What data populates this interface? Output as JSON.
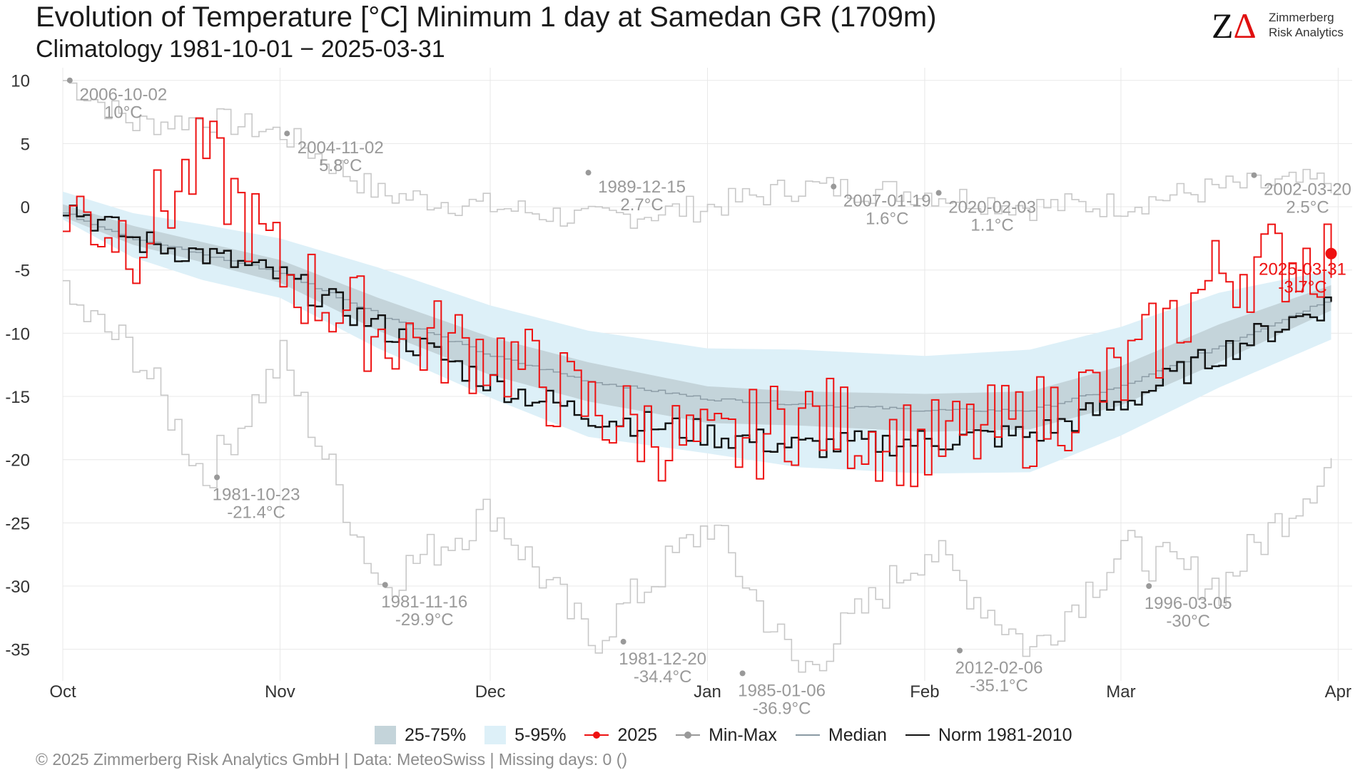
{
  "header": {
    "title": "Evolution of Temperature [°C] Minimum 1 day at Samedan  GR (1709m)",
    "subtitle": "Climatology 1981-10-01 − 2025-03-31"
  },
  "logo": {
    "mark_z": "Z",
    "mark_a": "Δ",
    "line1": "Zimmerberg",
    "line2": "Risk Analytics"
  },
  "footer": {
    "text": "©  2025 Zimmerberg Risk Analytics GmbH | Data: MeteoSwiss | Missing days: 0 ()"
  },
  "colors": {
    "band_25_75": "#c4d4da",
    "band_5_95": "#ddf0f8",
    "year_2025": "#ee1111",
    "minmax": "#c8c8c8",
    "minmax_dot": "#999999",
    "median": "#8a9aa4",
    "norm": "#111111",
    "annotation": "#999999",
    "grid": "#e8e8e8"
  },
  "chart_data": {
    "type": "line",
    "title": "Evolution of Temperature [°C] Minimum 1 day at Samedan  GR (1709m)",
    "x_axis": {
      "ticks": [
        {
          "label": "Oct",
          "day": 0
        },
        {
          "label": "Nov",
          "day": 31
        },
        {
          "label": "Dec",
          "day": 61
        },
        {
          "label": "Jan",
          "day": 92
        },
        {
          "label": "Feb",
          "day": 123
        },
        {
          "label": "Mar",
          "day": 151
        },
        {
          "label": "Apr",
          "day": 182
        }
      ],
      "range": [
        "2024-10-01",
        "2025-04-01"
      ]
    },
    "y_axis": {
      "ticks": [
        10,
        5,
        0,
        -5,
        -10,
        -15,
        -20,
        -25,
        -30,
        -35
      ],
      "range": [
        -37.5,
        11
      ],
      "unit": "°C"
    },
    "grid": true,
    "legend": {
      "placement": "bottom",
      "items": [
        {
          "key": "band_25_75",
          "label": "25-75%",
          "kind": "swatch"
        },
        {
          "key": "band_5_95",
          "label": "5-95%",
          "kind": "swatch"
        },
        {
          "key": "year_2025",
          "label": "2025",
          "kind": "dotline"
        },
        {
          "key": "minmax_dot",
          "label": "Min-Max",
          "kind": "dotline"
        },
        {
          "key": "median",
          "label": "Median",
          "kind": "line"
        },
        {
          "key": "norm",
          "label": "Norm 1981-2010",
          "kind": "line"
        }
      ]
    },
    "anchors": {
      "days": [
        0,
        10,
        20,
        31,
        45,
        61,
        75,
        92,
        105,
        123,
        138,
        151,
        165,
        181
      ],
      "median": [
        -0.5,
        -2.5,
        -3.8,
        -5.2,
        -8.5,
        -11.8,
        -13.8,
        -15.2,
        -15.6,
        -16.1,
        -16.1,
        -14.2,
        -11.0,
        -7.2
      ],
      "p25": [
        -0.8,
        -3.0,
        -4.4,
        -6.0,
        -9.8,
        -13.3,
        -15.4,
        -17.1,
        -17.3,
        -17.8,
        -17.6,
        -15.7,
        -12.3,
        -8.2
      ],
      "p75": [
        0.2,
        -1.5,
        -2.8,
        -4.2,
        -7.2,
        -10.3,
        -12.3,
        -14.2,
        -14.6,
        -14.8,
        -14.6,
        -12.6,
        -9.3,
        -6.2
      ],
      "p5": [
        -1.0,
        -4.0,
        -5.8,
        -7.2,
        -11.2,
        -15.1,
        -18.2,
        -19.5,
        -20.6,
        -21.1,
        -21.0,
        -18.1,
        -14.3,
        -10.5
      ],
      "p95": [
        1.2,
        -0.5,
        -1.4,
        -2.5,
        -4.8,
        -7.8,
        -9.8,
        -11.2,
        -11.3,
        -11.8,
        -11.3,
        -9.5,
        -6.8,
        -5.0
      ],
      "max": [
        10.0,
        6.5,
        7.0,
        5.8,
        1.0,
        0.0,
        -1.0,
        0.0,
        1.6,
        1.1,
        0.0,
        0.2,
        1.5,
        2.0
      ],
      "min": [
        -7.5,
        -11.5,
        -21.4,
        -12.0,
        -29.9,
        -24.0,
        -34.4,
        -25.0,
        -36.9,
        -27.0,
        -35.1,
        -27.0,
        -30.0,
        -20.0
      ],
      "norm": [
        0.2,
        -2.7,
        -3.8,
        -5.6,
        -9.5,
        -14.0,
        -16.5,
        -18.0,
        -19.0,
        -18.5,
        -18.0,
        -15.5,
        -11.5,
        -7.5
      ],
      "year_2025": [
        0.0,
        -2.5,
        4.0,
        -5.2,
        -10.0,
        -11.5,
        -16.0,
        -19.5,
        -16.5,
        -19.0,
        -17.0,
        -13.5,
        -5.0,
        -3.7
      ]
    },
    "record_annotations": [
      {
        "date": "2006-10-02",
        "value": "10°C",
        "day": 1,
        "temp": 10.0,
        "side": "right"
      },
      {
        "date": "2004-11-02",
        "value": "5.8°C",
        "day": 32,
        "temp": 5.8,
        "side": "right"
      },
      {
        "date": "1989-12-15",
        "value": "2.7°C",
        "day": 75,
        "temp": 2.7,
        "side": "right"
      },
      {
        "date": "2007-01-19",
        "value": "1.6°C",
        "day": 110,
        "temp": 1.6,
        "side": "right"
      },
      {
        "date": "2020-02-03",
        "value": "1.1°C",
        "day": 125,
        "temp": 1.1,
        "side": "right"
      },
      {
        "date": "2002-03-20",
        "value": "2.5°C",
        "day": 170,
        "temp": 2.5,
        "side": "right"
      },
      {
        "date": "1981-10-23",
        "value": "-21.4°C",
        "day": 22,
        "temp": -21.4,
        "side": "below"
      },
      {
        "date": "1981-11-16",
        "value": "-29.9°C",
        "day": 46,
        "temp": -29.9,
        "side": "below"
      },
      {
        "date": "1981-12-20",
        "value": "-34.4°C",
        "day": 80,
        "temp": -34.4,
        "side": "below"
      },
      {
        "date": "1985-01-06",
        "value": "-36.9°C",
        "day": 97,
        "temp": -36.9,
        "side": "below"
      },
      {
        "date": "2012-02-06",
        "value": "-35.1°C",
        "day": 128,
        "temp": -35.1,
        "side": "below"
      },
      {
        "date": "1996-03-05",
        "value": "-30°C",
        "day": 155,
        "temp": -30.0,
        "side": "below"
      }
    ],
    "current": {
      "date": "2025-03-31",
      "value": "-3.7°C",
      "day": 181,
      "temp": -3.7
    }
  }
}
